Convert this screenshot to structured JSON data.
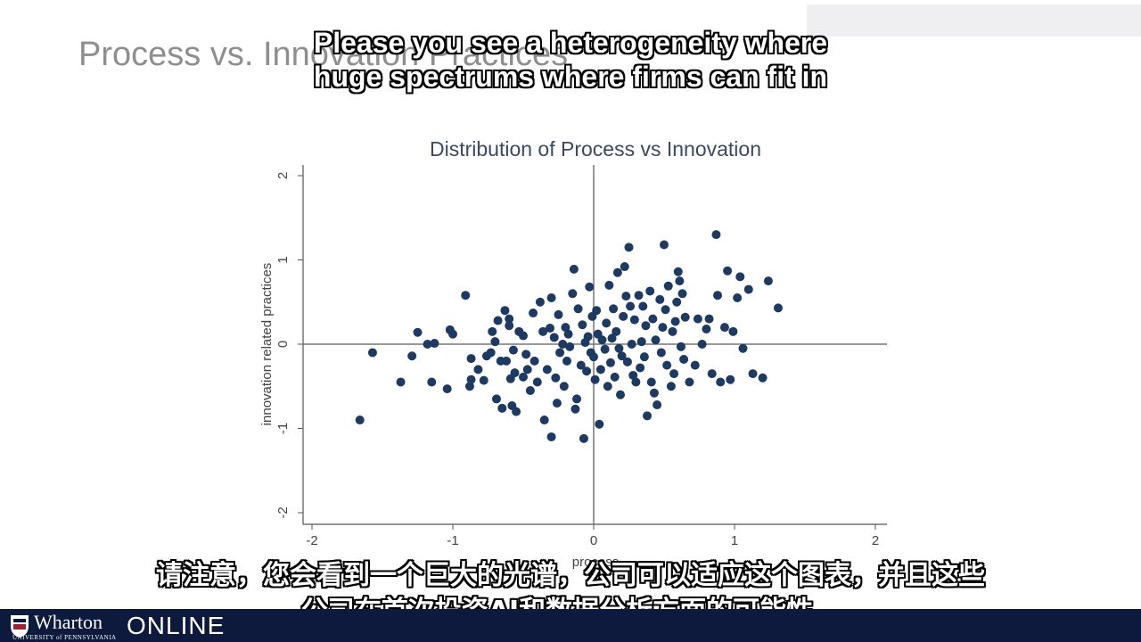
{
  "slide": {
    "title": "Process vs. Innovation Practices"
  },
  "subtitles": {
    "en_line1": "Please you see a heterogeneity where",
    "en_line2": "huge spectrums where firms can fit in",
    "zh_line1": "请注意，您会看到一个巨大的光谱，公司可以适应这个图表，并且这些",
    "zh_line2": "公司在首次投资AI和数据分析方面的可能性。"
  },
  "footer": {
    "brand": "Wharton",
    "university": "UNIVERSITY of PENNSYLVANIA",
    "online": "ONLINE"
  },
  "chart_data": {
    "type": "scatter",
    "title": "Distribution of Process vs Innovation",
    "xlabel": "process",
    "ylabel": "innovation related practices",
    "xlim": [
      -2,
      2
    ],
    "ylim": [
      -2,
      2
    ],
    "xticks": [
      "-2",
      "-1",
      "0",
      "1",
      "2"
    ],
    "yticks": [
      "-2",
      "-1",
      "0",
      "1",
      "2"
    ],
    "reference_lines": {
      "x": 0,
      "y": 0
    },
    "grid": false,
    "marker_color": "#1f3a60",
    "points": [
      [
        -1.66,
        -0.9
      ],
      [
        -1.57,
        -0.1
      ],
      [
        -1.37,
        -0.45
      ],
      [
        -1.29,
        -0.14
      ],
      [
        -1.25,
        0.14
      ],
      [
        -1.18,
        0.0
      ],
      [
        -1.15,
        -0.45
      ],
      [
        -1.13,
        0.01
      ],
      [
        -1.04,
        -0.53
      ],
      [
        -1.02,
        0.17
      ],
      [
        -1.0,
        0.12
      ],
      [
        -0.91,
        0.58
      ],
      [
        -0.88,
        -0.5
      ],
      [
        -0.87,
        -0.42
      ],
      [
        -0.87,
        -0.17
      ],
      [
        -0.82,
        -0.3
      ],
      [
        -0.78,
        -0.43
      ],
      [
        -0.76,
        -0.14
      ],
      [
        -0.73,
        -0.1
      ],
      [
        -0.72,
        0.15
      ],
      [
        -0.7,
        0.03
      ],
      [
        -0.69,
        -0.65
      ],
      [
        -0.68,
        0.28
      ],
      [
        -0.66,
        -0.2
      ],
      [
        -0.65,
        -0.76
      ],
      [
        -0.63,
        0.4
      ],
      [
        -0.62,
        -0.2
      ],
      [
        -0.6,
        0.22
      ],
      [
        -0.6,
        0.3
      ],
      [
        -0.59,
        -0.41
      ],
      [
        -0.58,
        -0.73
      ],
      [
        -0.57,
        -0.07
      ],
      [
        -0.56,
        -0.34
      ],
      [
        -0.55,
        -0.8
      ],
      [
        -0.53,
        0.15
      ],
      [
        -0.5,
        0.1
      ],
      [
        -0.5,
        -0.39
      ],
      [
        -0.48,
        -0.12
      ],
      [
        -0.47,
        -0.3
      ],
      [
        -0.45,
        -0.55
      ],
      [
        -0.43,
        0.37
      ],
      [
        -0.42,
        -0.2
      ],
      [
        -0.4,
        -0.45
      ],
      [
        -0.38,
        0.5
      ],
      [
        -0.36,
        0.15
      ],
      [
        -0.35,
        -0.9
      ],
      [
        -0.33,
        -0.3
      ],
      [
        -0.31,
        0.19
      ],
      [
        -0.3,
        0.55
      ],
      [
        -0.3,
        -1.1
      ],
      [
        -0.28,
        0.08
      ],
      [
        -0.27,
        -0.4
      ],
      [
        -0.26,
        -0.7
      ],
      [
        -0.25,
        0.35
      ],
      [
        -0.24,
        -0.1
      ],
      [
        -0.22,
        0.0
      ],
      [
        -0.21,
        -0.5
      ],
      [
        -0.2,
        0.2
      ],
      [
        -0.19,
        -0.2
      ],
      [
        -0.18,
        0.12
      ],
      [
        -0.17,
        -0.03
      ],
      [
        -0.15,
        0.6
      ],
      [
        -0.14,
        0.89
      ],
      [
        -0.13,
        -0.77
      ],
      [
        -0.12,
        -0.65
      ],
      [
        -0.11,
        0.42
      ],
      [
        -0.09,
        -0.25
      ],
      [
        -0.08,
        0.23
      ],
      [
        -0.07,
        -1.12
      ],
      [
        -0.06,
        0.02
      ],
      [
        -0.05,
        -0.32
      ],
      [
        -0.04,
        0.09
      ],
      [
        -0.03,
        0.68
      ],
      [
        -0.02,
        -0.1
      ],
      [
        -0.01,
        0.33
      ],
      [
        0.0,
        -0.15
      ],
      [
        0.01,
        -0.42
      ],
      [
        0.02,
        0.4
      ],
      [
        0.03,
        0.12
      ],
      [
        0.04,
        -0.95
      ],
      [
        0.05,
        -0.3
      ],
      [
        0.06,
        0.05
      ],
      [
        0.08,
        -0.06
      ],
      [
        0.09,
        0.25
      ],
      [
        0.1,
        -0.5
      ],
      [
        0.11,
        0.7
      ],
      [
        0.12,
        -0.22
      ],
      [
        0.13,
        0.07
      ],
      [
        0.14,
        0.42
      ],
      [
        0.15,
        -0.39
      ],
      [
        0.16,
        0.15
      ],
      [
        0.17,
        0.85
      ],
      [
        0.18,
        -0.05
      ],
      [
        0.19,
        -0.6
      ],
      [
        0.2,
        -0.14
      ],
      [
        0.21,
        0.33
      ],
      [
        0.22,
        0.92
      ],
      [
        0.23,
        0.57
      ],
      [
        0.24,
        -0.21
      ],
      [
        0.25,
        1.15
      ],
      [
        0.26,
        0.45
      ],
      [
        0.27,
        0.0
      ],
      [
        0.28,
        -0.37
      ],
      [
        0.29,
        0.29
      ],
      [
        0.3,
        -0.45
      ],
      [
        0.32,
        0.58
      ],
      [
        0.33,
        -0.28
      ],
      [
        0.34,
        0.03
      ],
      [
        0.35,
        0.45
      ],
      [
        0.36,
        -0.15
      ],
      [
        0.37,
        0.22
      ],
      [
        0.38,
        -0.85
      ],
      [
        0.4,
        0.63
      ],
      [
        0.41,
        -0.45
      ],
      [
        0.42,
        0.3
      ],
      [
        0.43,
        -0.58
      ],
      [
        0.44,
        0.05
      ],
      [
        0.45,
        -0.72
      ],
      [
        0.47,
        0.53
      ],
      [
        0.48,
        -0.1
      ],
      [
        0.49,
        0.2
      ],
      [
        0.5,
        1.18
      ],
      [
        0.51,
        0.41
      ],
      [
        0.52,
        -0.25
      ],
      [
        0.53,
        0.69
      ],
      [
        0.55,
        -0.5
      ],
      [
        0.56,
        0.15
      ],
      [
        0.57,
        -0.35
      ],
      [
        0.58,
        0.27
      ],
      [
        0.59,
        0.5
      ],
      [
        0.6,
        0.86
      ],
      [
        0.61,
        0.75
      ],
      [
        0.62,
        -0.03
      ],
      [
        0.63,
        0.6
      ],
      [
        0.64,
        -0.18
      ],
      [
        0.65,
        0.32
      ],
      [
        0.68,
        -0.45
      ],
      [
        0.72,
        -0.25
      ],
      [
        0.74,
        0.3
      ],
      [
        0.77,
        0.0
      ],
      [
        0.8,
        0.18
      ],
      [
        0.82,
        0.3
      ],
      [
        0.84,
        -0.35
      ],
      [
        0.87,
        1.3
      ],
      [
        0.88,
        0.58
      ],
      [
        0.9,
        -0.45
      ],
      [
        0.93,
        0.2
      ],
      [
        0.95,
        0.87
      ],
      [
        0.97,
        -0.42
      ],
      [
        0.99,
        0.15
      ],
      [
        1.02,
        0.55
      ],
      [
        1.04,
        0.8
      ],
      [
        1.06,
        -0.05
      ],
      [
        1.1,
        0.65
      ],
      [
        1.13,
        -0.35
      ],
      [
        1.2,
        -0.4
      ],
      [
        1.24,
        0.75
      ],
      [
        1.31,
        0.43
      ]
    ]
  }
}
